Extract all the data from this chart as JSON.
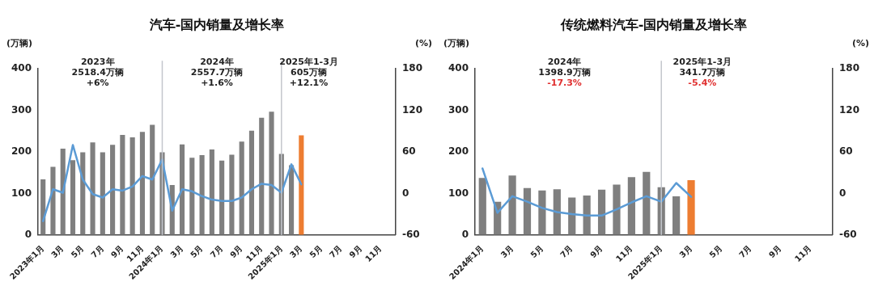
{
  "chart_data": [
    {
      "type": "bar",
      "title": "汽车-国内销量及增长率",
      "ylabel": "(万辆)",
      "y2label": "(%)",
      "categories": [
        "2023年1月",
        null,
        "3月",
        null,
        "5月",
        null,
        "7月",
        null,
        "9月",
        null,
        "11月",
        null,
        "2024年1月",
        null,
        "3月",
        null,
        "5月",
        null,
        "7月",
        null,
        "9月",
        null,
        "11月",
        null,
        "2025年1月",
        null,
        "3月",
        null,
        "5月",
        null,
        "7月",
        null,
        "9月",
        null,
        "11月",
        null
      ],
      "series": [
        {
          "colors": [
            "#7f7f7f",
            "#7f7f7f",
            "#7f7f7f",
            "#7f7f7f",
            "#7f7f7f",
            "#7f7f7f",
            "#7f7f7f",
            "#7f7f7f",
            "#7f7f7f",
            "#7f7f7f",
            "#7f7f7f",
            "#7f7f7f",
            "#7f7f7f",
            "#7f7f7f",
            "#7f7f7f",
            "#7f7f7f",
            "#7f7f7f",
            "#7f7f7f",
            "#7f7f7f",
            "#7f7f7f",
            "#7f7f7f",
            "#7f7f7f",
            "#7f7f7f",
            "#7f7f7f",
            "#7f7f7f",
            "#7f7f7f",
            "#ed7d31",
            null,
            null,
            null,
            null,
            null,
            null,
            null,
            null,
            null
          ],
          "values": [
            134,
            164,
            208,
            180,
            199,
            223,
            199,
            217,
            241,
            235,
            248,
            265,
            199,
            120,
            218,
            186,
            192,
            206,
            179,
            193,
            225,
            251,
            282,
            297,
            195,
            168,
            240,
            null,
            null,
            null,
            null,
            null,
            null,
            null,
            null,
            null
          ]
        },
        {
          "type": "line",
          "axis": "y2",
          "color": "#5b9bd5",
          "values": [
            -40,
            6,
            1,
            70,
            20,
            -1,
            -6,
            6,
            4,
            10,
            25,
            20,
            49,
            -25,
            6,
            3,
            -4,
            -9,
            -11,
            -11,
            -6,
            6,
            14,
            12,
            1,
            42,
            13,
            null,
            null,
            null,
            null,
            null,
            null,
            null,
            null,
            null
          ]
        }
      ],
      "ylim": [
        0,
        400
      ],
      "yticks": [
        0,
        100,
        200,
        300,
        400
      ],
      "y2lim": [
        -60,
        180
      ],
      "y2ticks": [
        -60,
        0,
        60,
        120,
        180
      ],
      "ref_lines": [
        {
          "axis": "x",
          "value": "2024年1月",
          "color": "#c3c6cc"
        },
        {
          "axis": "x",
          "value": "2025年1月",
          "color": "#c3c6cc"
        }
      ],
      "annotations": [
        "2023年\n2518.4万辆\n+6%",
        "2024年\n2557.7万辆\n+1.6%",
        "2025年1-3月\n605万辆\n+12.1%"
      ]
    },
    {
      "type": "bar",
      "title": "传统燃料汽车-国内销量及增长率",
      "ylabel": "(万辆)",
      "y2label": "(%)",
      "categories": [
        "2024年1月",
        null,
        "3月",
        null,
        "5月",
        null,
        "7月",
        null,
        "9月",
        null,
        "11月",
        null,
        "2025年1月",
        null,
        "3月",
        null,
        "5月",
        null,
        "7月",
        null,
        "9月",
        null,
        "11月",
        null
      ],
      "series": [
        {
          "colors": [
            "#7f7f7f",
            "#7f7f7f",
            "#7f7f7f",
            "#7f7f7f",
            "#7f7f7f",
            "#7f7f7f",
            "#7f7f7f",
            "#7f7f7f",
            "#7f7f7f",
            "#7f7f7f",
            "#7f7f7f",
            "#7f7f7f",
            "#7f7f7f",
            "#7f7f7f",
            "#ed7d31",
            null,
            null,
            null,
            null,
            null,
            null,
            null,
            null,
            null
          ],
          "values": [
            137,
            80,
            143,
            113,
            107,
            110,
            90,
            95,
            109,
            121,
            139,
            152,
            115,
            93,
            132,
            null,
            null,
            null,
            null,
            null,
            null,
            null,
            null,
            null
          ]
        },
        {
          "type": "line",
          "axis": "y2",
          "color": "#5b9bd5",
          "values": [
            36,
            -28,
            -4,
            -12,
            -21,
            -27,
            -30,
            -32,
            -32,
            -23,
            -13,
            -4,
            -12,
            15,
            -5,
            null,
            null,
            null,
            null,
            null,
            null,
            null,
            null,
            null
          ]
        }
      ],
      "ylim": [
        0,
        400
      ],
      "yticks": [
        0,
        100,
        200,
        300,
        400
      ],
      "y2lim": [
        -60,
        180
      ],
      "y2ticks": [
        -60,
        0,
        60,
        120,
        180
      ],
      "ref_lines": [
        {
          "axis": "x",
          "value": "2025年1月",
          "color": "#c3c6cc"
        }
      ],
      "annotations": [
        "2024年\n1398.9万辆\n-17.3%",
        "2025年1-3月\n341.7万辆\n-5.4%"
      ]
    }
  ]
}
